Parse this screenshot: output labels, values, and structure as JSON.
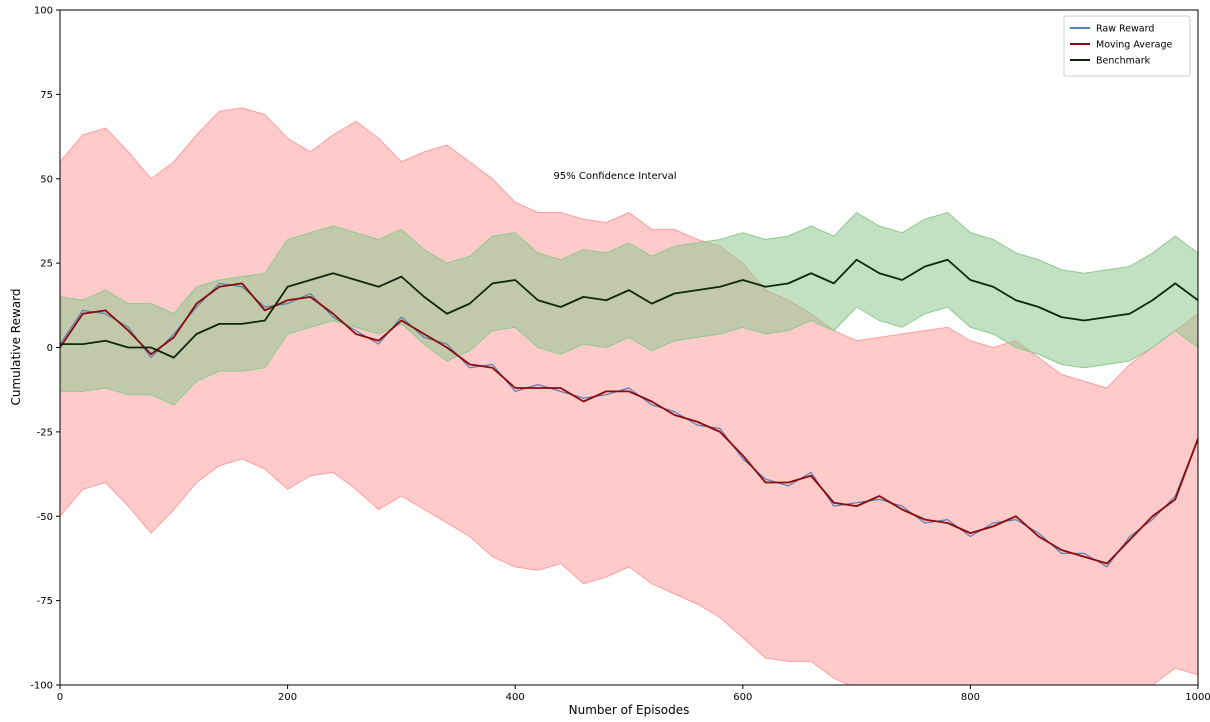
{
  "chart_data": {
    "type": "line",
    "xlabel": "Number of Episodes",
    "ylabel": "Cumulative Reward",
    "annotation": "95% Confidence Interval",
    "xlim": [
      0,
      1000
    ],
    "ylim": [
      -100,
      100
    ],
    "xticks": [
      0,
      200,
      400,
      600,
      800,
      1000
    ],
    "yticks": [
      -100,
      -75,
      -50,
      -25,
      0,
      25,
      50,
      75,
      100
    ],
    "grid": false,
    "legend": "upper right",
    "x": [
      0,
      20,
      40,
      60,
      80,
      100,
      120,
      140,
      160,
      180,
      200,
      220,
      240,
      260,
      280,
      300,
      320,
      340,
      360,
      380,
      400,
      420,
      440,
      460,
      480,
      500,
      520,
      540,
      560,
      580,
      600,
      620,
      640,
      660,
      680,
      700,
      720,
      740,
      760,
      780,
      800,
      820,
      840,
      860,
      880,
      900,
      920,
      940,
      960,
      980,
      1000
    ],
    "bands": [
      {
        "color": "#ff9e9e",
        "upper": [
          55,
          63,
          65,
          58,
          50,
          55,
          63,
          70,
          71,
          69,
          62,
          58,
          63,
          67,
          62,
          55,
          58,
          60,
          55,
          50,
          43,
          40,
          40,
          38,
          37,
          40,
          35,
          35,
          32,
          30,
          25,
          17,
          14,
          10,
          5,
          2,
          3,
          4,
          5,
          6,
          2,
          0,
          2,
          -3,
          -8,
          -10,
          -12,
          -5,
          0,
          5,
          10
        ],
        "lower": [
          -50,
          -42,
          -40,
          -47,
          -55,
          -48,
          -40,
          -35,
          -33,
          -36,
          -42,
          -38,
          -37,
          -42,
          -48,
          -44,
          -48,
          -52,
          -56,
          -62,
          -65,
          -66,
          -64,
          -70,
          -68,
          -65,
          -70,
          -73,
          -76,
          -80,
          -86,
          -92,
          -93,
          -93,
          -98,
          -101,
          -100,
          -104,
          -105,
          -107,
          -108,
          -106,
          -105,
          -108,
          -110,
          -112,
          -113,
          -106,
          -100,
          -95,
          -97
        ]
      },
      {
        "color": "#8fc98f",
        "upper": [
          15,
          14,
          17,
          13,
          13,
          10,
          18,
          20,
          21,
          22,
          32,
          34,
          36,
          34,
          32,
          35,
          29,
          25,
          27,
          33,
          34,
          28,
          26,
          29,
          28,
          31,
          27,
          30,
          31,
          32,
          34,
          32,
          33,
          36,
          33,
          40,
          36,
          34,
          38,
          40,
          34,
          32,
          28,
          26,
          23,
          22,
          23,
          24,
          28,
          33,
          28
        ],
        "lower": [
          -13,
          -13,
          -12,
          -14,
          -14,
          -17,
          -10,
          -7,
          -7,
          -6,
          4,
          6,
          8,
          6,
          4,
          7,
          1,
          -4,
          -1,
          5,
          6,
          0,
          -2,
          1,
          0,
          3,
          -1,
          2,
          3,
          4,
          6,
          4,
          5,
          8,
          5,
          12,
          8,
          6,
          10,
          12,
          6,
          4,
          0,
          -2,
          -5,
          -6,
          -5,
          -4,
          0,
          5,
          0
        ]
      }
    ],
    "series": [
      {
        "name": "Raw Reward",
        "color": "#5a7fb5",
        "values": [
          1,
          11,
          10,
          6,
          -3,
          4,
          12,
          19,
          18,
          12,
          13,
          16,
          9,
          5,
          1,
          9,
          3,
          1,
          -6,
          -5,
          -13,
          -11,
          -13,
          -15,
          -14,
          -12,
          -17,
          -19,
          -23,
          -24,
          -33,
          -39,
          -41,
          -37,
          -47,
          -46,
          -45,
          -47,
          -52,
          -51,
          -56,
          -52,
          -51,
          -55,
          -61,
          -61,
          -65,
          -56,
          -51,
          -44,
          -27
        ]
      },
      {
        "name": "Moving Average",
        "color": "#8b0a0a",
        "values": [
          0,
          10,
          11,
          5,
          -2,
          3,
          13,
          18,
          19,
          11,
          14,
          15,
          10,
          4,
          2,
          8,
          4,
          0,
          -5,
          -6,
          -12,
          -12,
          -12,
          -16,
          -13,
          -13,
          -16,
          -20,
          -22,
          -25,
          -32,
          -40,
          -40,
          -38,
          -46,
          -47,
          -44,
          -48,
          -51,
          -52,
          -55,
          -53,
          -50,
          -56,
          -60,
          -62,
          -64,
          -57,
          -50,
          -45,
          -27
        ]
      },
      {
        "name": "Benchmark",
        "color": "#0d260d",
        "values": [
          1,
          1,
          2,
          0,
          0,
          -3,
          4,
          7,
          7,
          8,
          18,
          20,
          22,
          20,
          18,
          21,
          15,
          10,
          13,
          19,
          20,
          14,
          12,
          15,
          14,
          17,
          13,
          16,
          17,
          18,
          20,
          18,
          19,
          22,
          19,
          26,
          22,
          20,
          24,
          26,
          20,
          18,
          14,
          12,
          9,
          8,
          9,
          10,
          14,
          19,
          14
        ]
      }
    ]
  }
}
